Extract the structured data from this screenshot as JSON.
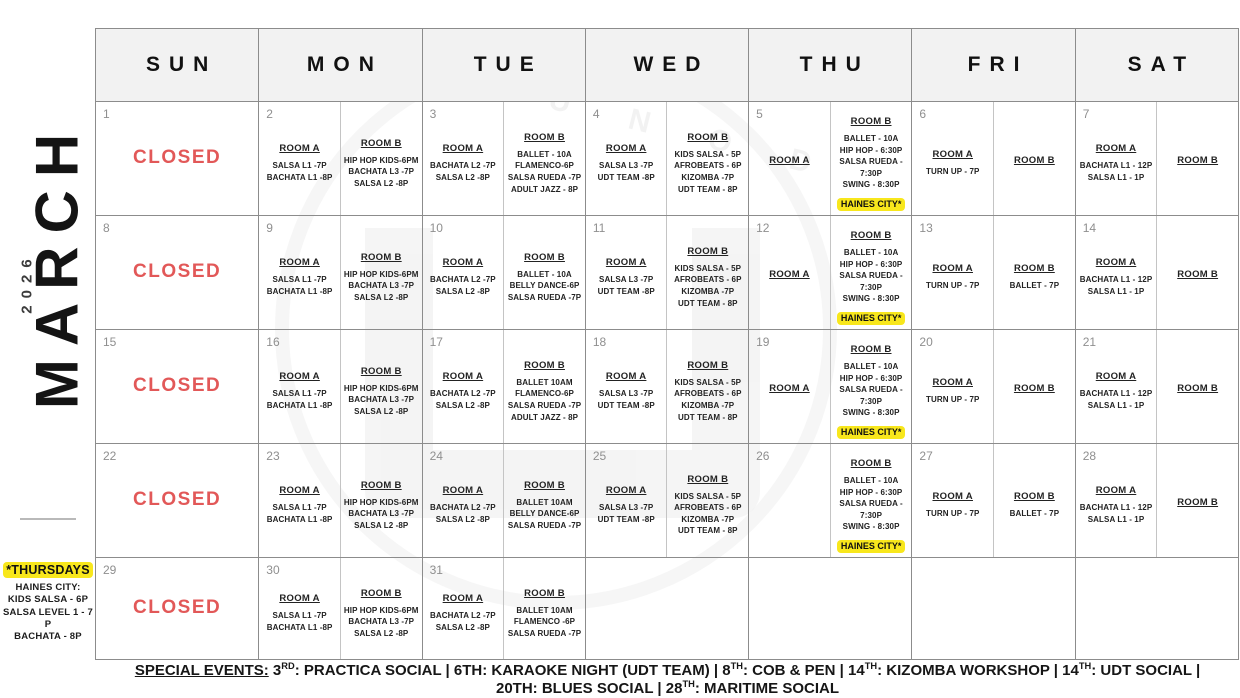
{
  "sidebar": {
    "month": "MARCH",
    "year": "2026"
  },
  "colors": {
    "closed_text": "#e25858",
    "highlight_yellow": "#f8e71c",
    "header_bg": "#f2f2f2",
    "grid_border": "#8c8c8c"
  },
  "watermark_text": "U N O D",
  "day_headers": [
    "SUN",
    "MON",
    "TUE",
    "WED",
    "THU",
    "FRI",
    "SAT"
  ],
  "weeks": [
    [
      {
        "num": "1",
        "closed": "CLOSED"
      },
      {
        "num": "2",
        "rooms": [
          {
            "label": "ROOM A",
            "items": [
              "SALSA L1 -7P",
              "BACHATA L1 -8P"
            ]
          },
          {
            "label": "ROOM B",
            "items": [
              "HIP HOP KIDS-6PM",
              "BACHATA L3 -7P",
              "SALSA L2 -8P"
            ]
          }
        ]
      },
      {
        "num": "3",
        "rooms": [
          {
            "label": "ROOM A",
            "items": [
              "BACHATA L2 -7P",
              "SALSA L2 -8P"
            ]
          },
          {
            "label": "ROOM B",
            "items": [
              "BALLET - 10A",
              "FLAMENCO-6P",
              "SALSA RUEDA -7P",
              "ADULT JAZZ - 8P"
            ]
          }
        ]
      },
      {
        "num": "4",
        "rooms": [
          {
            "label": "ROOM A",
            "items": [
              "SALSA L3 -7P",
              "UDT TEAM -8P"
            ]
          },
          {
            "label": "ROOM B",
            "items": [
              "KIDS SALSA - 5P",
              "AFROBEATS - 6P",
              "KIZOMBA -7P",
              "UDT TEAM - 8P"
            ]
          }
        ]
      },
      {
        "num": "5",
        "rooms": [
          {
            "label": "ROOM A",
            "items": []
          },
          {
            "label": "ROOM B",
            "items": [
              "BALLET - 10A",
              "HIP HOP - 6:30P",
              "SALSA RUEDA - 7:30P",
              "SWING - 8:30P"
            ],
            "badge": "HAINES CITY*"
          }
        ]
      },
      {
        "num": "6",
        "rooms": [
          {
            "label": "ROOM A",
            "items": [
              "TURN UP - 7P"
            ]
          },
          {
            "label": "ROOM B",
            "items": []
          }
        ]
      },
      {
        "num": "7",
        "rooms": [
          {
            "label": "ROOM A",
            "items": [
              "BACHATA L1 - 12P",
              "SALSA L1 - 1P"
            ]
          },
          {
            "label": "ROOM B",
            "items": []
          }
        ]
      }
    ],
    [
      {
        "num": "8",
        "closed": "CLOSED"
      },
      {
        "num": "9",
        "rooms": [
          {
            "label": "ROOM A",
            "items": [
              "SALSA L1 -7P",
              "BACHATA L1 -8P"
            ]
          },
          {
            "label": "ROOM B",
            "items": [
              "HIP HOP KIDS-6PM",
              "BACHATA L3 -7P",
              "SALSA L2 -8P"
            ]
          }
        ]
      },
      {
        "num": "10",
        "rooms": [
          {
            "label": "ROOM A",
            "items": [
              "BACHATA L2 -7P",
              "SALSA L2 -8P"
            ]
          },
          {
            "label": "ROOM B",
            "items": [
              "BALLET - 10A",
              "BELLY DANCE-6P",
              "SALSA RUEDA -7P"
            ]
          }
        ]
      },
      {
        "num": "11",
        "rooms": [
          {
            "label": "ROOM A",
            "items": [
              "SALSA L3 -7P",
              "UDT TEAM -8P"
            ]
          },
          {
            "label": "ROOM B",
            "items": [
              "KIDS SALSA - 5P",
              "AFROBEATS - 6P",
              "KIZOMBA -7P",
              "UDT TEAM - 8P"
            ]
          }
        ]
      },
      {
        "num": "12",
        "rooms": [
          {
            "label": "ROOM A",
            "items": []
          },
          {
            "label": "ROOM B",
            "items": [
              "BALLET - 10A",
              "HIP HOP - 6:30P",
              "SALSA RUEDA - 7:30P",
              "SWING - 8:30P"
            ],
            "badge": "HAINES CITY*"
          }
        ]
      },
      {
        "num": "13",
        "rooms": [
          {
            "label": "ROOM A",
            "items": [
              "TURN UP - 7P"
            ]
          },
          {
            "label": "ROOM B",
            "items": [
              "BALLET - 7P"
            ]
          }
        ]
      },
      {
        "num": "14",
        "rooms": [
          {
            "label": "ROOM A",
            "items": [
              "BACHATA L1 - 12P",
              "SALSA L1 - 1P"
            ]
          },
          {
            "label": "ROOM B",
            "items": []
          }
        ]
      }
    ],
    [
      {
        "num": "15",
        "closed": "CLOSED"
      },
      {
        "num": "16",
        "rooms": [
          {
            "label": "ROOM A",
            "items": [
              "SALSA L1 -7P",
              "BACHATA L1 -8P"
            ]
          },
          {
            "label": "ROOM B",
            "items": [
              "HIP HOP KIDS-6PM",
              "BACHATA L3 -7P",
              "SALSA L2 -8P"
            ]
          }
        ]
      },
      {
        "num": "17",
        "rooms": [
          {
            "label": "ROOM A",
            "items": [
              "BACHATA L2 -7P",
              "SALSA L2 -8P"
            ]
          },
          {
            "label": "ROOM B",
            "items": [
              "BALLET 10AM",
              "FLAMENCO-6P",
              "SALSA RUEDA -7P",
              "ADULT JAZZ - 8P"
            ]
          }
        ]
      },
      {
        "num": "18",
        "rooms": [
          {
            "label": "ROOM A",
            "items": [
              "SALSA L3 -7P",
              "UDT TEAM -8P"
            ]
          },
          {
            "label": "ROOM B",
            "items": [
              "KIDS SALSA - 5P",
              "AFROBEATS - 6P",
              "KIZOMBA -7P",
              "UDT TEAM - 8P"
            ]
          }
        ]
      },
      {
        "num": "19",
        "rooms": [
          {
            "label": "ROOM A",
            "items": []
          },
          {
            "label": "ROOM B",
            "items": [
              "BALLET - 10A",
              "HIP HOP - 6:30P",
              "SALSA RUEDA - 7:30P",
              "SWING - 8:30P"
            ],
            "badge": "HAINES CITY*"
          }
        ]
      },
      {
        "num": "20",
        "rooms": [
          {
            "label": "ROOM A",
            "items": [
              "TURN UP - 7P"
            ]
          },
          {
            "label": "ROOM B",
            "items": []
          }
        ]
      },
      {
        "num": "21",
        "rooms": [
          {
            "label": "ROOM A",
            "items": [
              "BACHATA L1 - 12P",
              "SALSA L1 - 1P"
            ]
          },
          {
            "label": "ROOM B",
            "items": []
          }
        ]
      }
    ],
    [
      {
        "num": "22",
        "closed": "CLOSED"
      },
      {
        "num": "23",
        "rooms": [
          {
            "label": "ROOM A",
            "items": [
              "SALSA L1 -7P",
              "BACHATA L1 -8P"
            ]
          },
          {
            "label": "ROOM B",
            "items": [
              "HIP HOP KIDS-6PM",
              "BACHATA L3 -7P",
              "SALSA L2 -8P"
            ]
          }
        ]
      },
      {
        "num": "24",
        "rooms": [
          {
            "label": "ROOM A",
            "items": [
              "BACHATA L2 -7P",
              "SALSA L2 -8P"
            ]
          },
          {
            "label": "ROOM B",
            "items": [
              "BALLET 10AM",
              "BELLY DANCE-6P",
              "SALSA RUEDA -7P"
            ]
          }
        ]
      },
      {
        "num": "25",
        "rooms": [
          {
            "label": "ROOM A",
            "items": [
              "SALSA L3 -7P",
              "UDT TEAM -8P"
            ]
          },
          {
            "label": "ROOM B",
            "items": [
              "KIDS SALSA - 5P",
              "AFROBEATS - 6P",
              "KIZOMBA -7P",
              "UDT TEAM - 8P"
            ]
          }
        ]
      },
      {
        "num": "26",
        "rooms": [
          {
            "label": "",
            "items": []
          },
          {
            "label": "ROOM B",
            "items": [
              "BALLET - 10A",
              "HIP HOP - 6:30P",
              "SALSA RUEDA - 7:30P",
              "SWING - 8:30P"
            ],
            "badge": "HAINES CITY*"
          }
        ]
      },
      {
        "num": "27",
        "rooms": [
          {
            "label": "ROOM A",
            "items": [
              "TURN UP - 7P"
            ]
          },
          {
            "label": "ROOM B",
            "items": [
              "BALLET - 7P"
            ]
          }
        ]
      },
      {
        "num": "28",
        "rooms": [
          {
            "label": "ROOM A",
            "items": [
              "BACHATA L1 - 12P",
              "SALSA L1 - 1P"
            ]
          },
          {
            "label": "ROOM B",
            "items": []
          }
        ]
      }
    ],
    [
      {
        "num": "29",
        "closed": "CLOSED"
      },
      {
        "num": "30",
        "rooms": [
          {
            "label": "ROOM A",
            "items": [
              "SALSA L1 -7P",
              "BACHATA L1 -8P"
            ]
          },
          {
            "label": "ROOM B",
            "items": [
              "HIP HOP KIDS-6PM",
              "BACHATA L3 -7P",
              "SALSA L2 -8P"
            ]
          }
        ]
      },
      {
        "num": "31",
        "rooms": [
          {
            "label": "ROOM A",
            "items": [
              "BACHATA L2 -7P",
              "SALSA L2 -8P"
            ]
          },
          {
            "label": "ROOM B",
            "items": [
              "BALLET 10AM",
              "FLAMENCO -6P",
              "SALSA RUEDA -7P"
            ]
          }
        ]
      },
      {},
      {},
      {},
      {}
    ]
  ],
  "thursdays_note": {
    "title": "*THURSDAYS",
    "lines": [
      "HAINES CITY:",
      "KIDS SALSA - 6P",
      "SALSA LEVEL 1 - 7 P",
      "BACHATA - 8P"
    ]
  },
  "special_events": {
    "segments": [
      {
        "text": "SPECIAL EVENTS:",
        "style": "label"
      },
      {
        "text": " 3"
      },
      {
        "text": "RD",
        "sup": true
      },
      {
        "text": ": PRACTICA SOCIAL | 6TH: KARAOKE NIGHT (UDT TEAM) | 8"
      },
      {
        "text": "TH",
        "sup": true
      },
      {
        "text": ": COB & PEN | 14"
      },
      {
        "text": "TH",
        "sup": true
      },
      {
        "text": ": KIZOMBA WORKSHOP | 14"
      },
      {
        "text": "TH",
        "sup": true
      },
      {
        "text": ": UDT SOCIAL |"
      },
      {
        "br": true
      },
      {
        "text": "20TH: BLUES SOCIAL | 28"
      },
      {
        "text": "TH",
        "sup": true
      },
      {
        "text": ": MARITIME SOCIAL"
      }
    ]
  }
}
